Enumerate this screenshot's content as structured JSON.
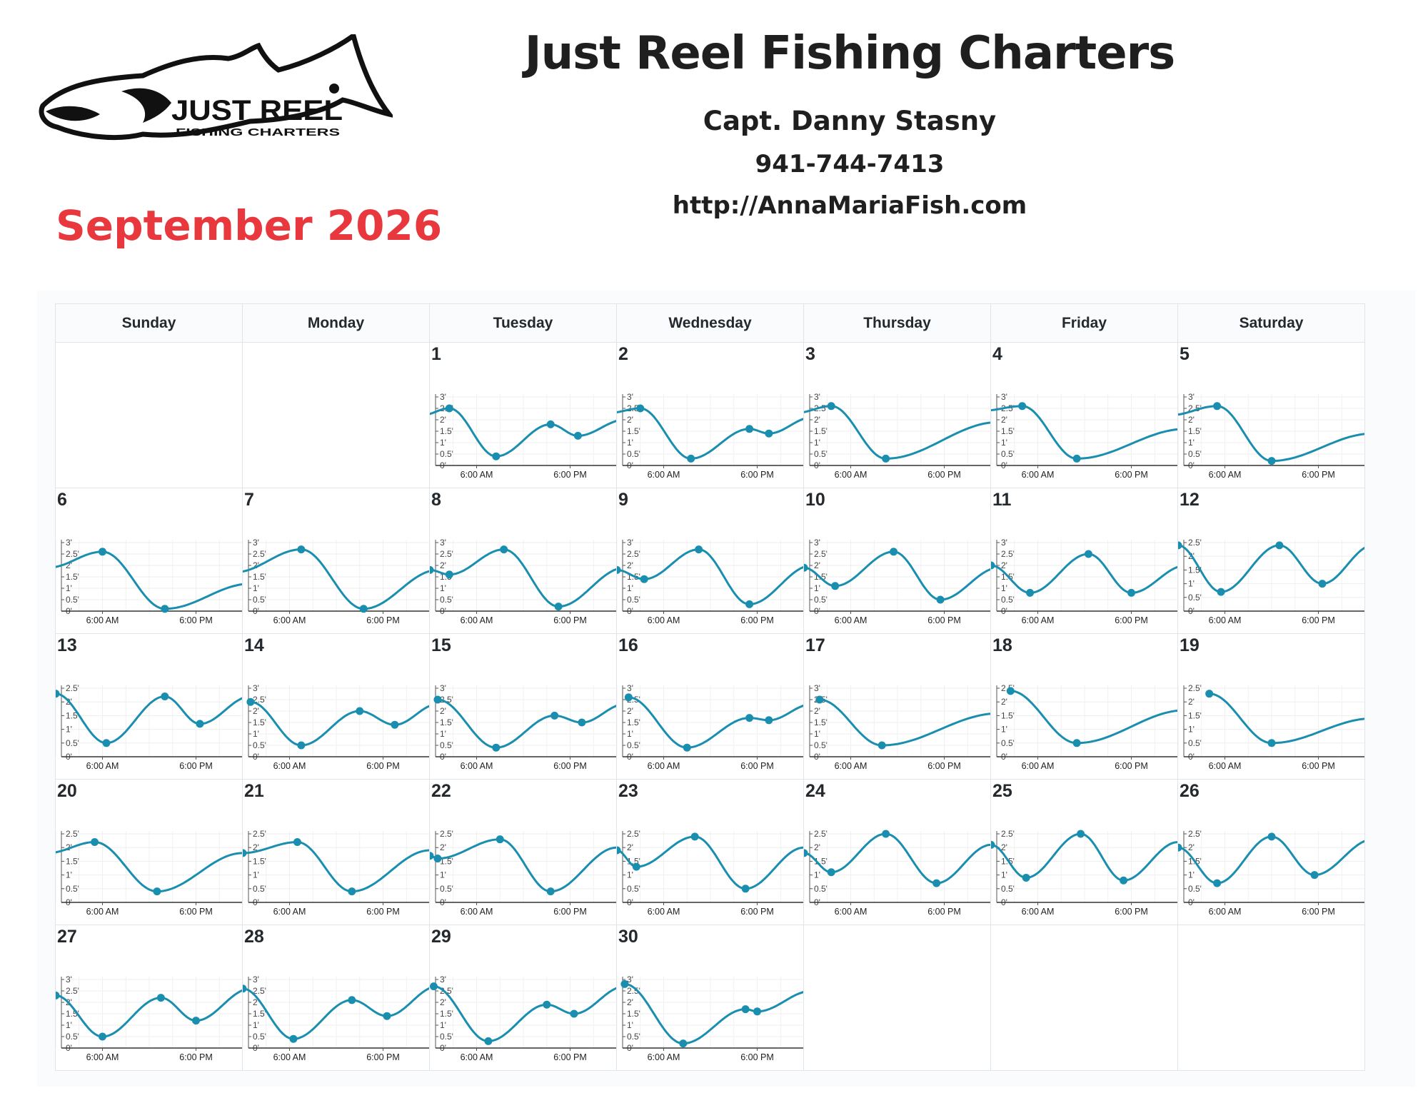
{
  "header": {
    "title": "Just Reel Fishing Charters",
    "captain": "Capt. Danny Stasny",
    "phone": "941-744-7413",
    "website": "http://AnnaMariaFish.com",
    "month": "September 2026"
  },
  "logo": {
    "line1": "JUST REEL",
    "line2": "FISHING CHARTERS",
    "description_icon": "redfish-logo-icon"
  },
  "colors": {
    "accent_red": "#e8383d",
    "tide_line": "#1a8eaf",
    "grid": "#e1e4e8"
  },
  "calendar": {
    "weekdays": [
      "Sunday",
      "Monday",
      "Tuesday",
      "Wednesday",
      "Thursday",
      "Friday",
      "Saturday"
    ],
    "first_weekday_index": 2,
    "days_in_month": 30
  },
  "chart_data": {
    "type": "line",
    "description_of_series": "daily tide height curves with high/low tide markers",
    "x_unit": "hour",
    "x_ticks": [
      {
        "hour": 6,
        "label": "6:00 AM"
      },
      {
        "hour": 18,
        "label": "6:00 PM"
      }
    ],
    "y_unit": "ft",
    "ylim": [
      0,
      3
    ],
    "y_ticks_standard": [
      "0'",
      "0.5'",
      "1'",
      "1.5'",
      "2'",
      "2.5'",
      "3'"
    ],
    "y_ticks_short": [
      "0'",
      "0.5'",
      "1'",
      "1.5'",
      "2'",
      "2.5'"
    ],
    "days": [
      {
        "day": 1,
        "y_top": 3,
        "points": [
          [
            -1,
            2.2
          ],
          [
            2.5,
            2.5
          ],
          [
            8.5,
            0.4
          ],
          [
            15.5,
            1.8
          ],
          [
            19,
            1.3
          ],
          [
            25,
            2.0
          ]
        ]
      },
      {
        "day": 2,
        "y_top": 3,
        "points": [
          [
            -1,
            2.3
          ],
          [
            3,
            2.5
          ],
          [
            9.5,
            0.3
          ],
          [
            17,
            1.6
          ],
          [
            19.5,
            1.4
          ],
          [
            25,
            2.1
          ]
        ]
      },
      {
        "day": 3,
        "y_top": 3,
        "points": [
          [
            -1,
            2.3
          ],
          [
            3.5,
            2.6
          ],
          [
            10.5,
            0.3
          ],
          [
            25,
            1.9
          ]
        ]
      },
      {
        "day": 4,
        "y_top": 3,
        "points": [
          [
            -1,
            2.4
          ],
          [
            4,
            2.6
          ],
          [
            11,
            0.3
          ],
          [
            25,
            1.6
          ]
        ]
      },
      {
        "day": 5,
        "y_top": 3,
        "points": [
          [
            -1,
            2.2
          ],
          [
            5,
            2.6
          ],
          [
            12,
            0.2
          ],
          [
            25,
            1.4
          ]
        ]
      },
      {
        "day": 6,
        "y_top": 3,
        "points": [
          [
            -1,
            1.9
          ],
          [
            6,
            2.6
          ],
          [
            14,
            0.1
          ],
          [
            25,
            1.2
          ]
        ]
      },
      {
        "day": 7,
        "y_top": 3,
        "points": [
          [
            -1,
            1.7
          ],
          [
            7.5,
            2.7
          ],
          [
            15.5,
            0.1
          ],
          [
            25,
            1.8
          ]
        ]
      },
      {
        "day": 8,
        "y_top": 3,
        "points": [
          [
            0,
            1.8
          ],
          [
            2.5,
            1.6
          ],
          [
            9.5,
            2.7
          ],
          [
            16.5,
            0.2
          ],
          [
            25,
            1.9
          ]
        ]
      },
      {
        "day": 9,
        "y_top": 3,
        "points": [
          [
            0,
            1.8
          ],
          [
            3.5,
            1.4
          ],
          [
            10.5,
            2.7
          ],
          [
            17,
            0.3
          ],
          [
            25,
            2.0
          ]
        ]
      },
      {
        "day": 10,
        "y_top": 3,
        "points": [
          [
            0,
            1.9
          ],
          [
            4,
            1.1
          ],
          [
            11.5,
            2.6
          ],
          [
            17.5,
            0.5
          ],
          [
            25,
            1.9
          ]
        ]
      },
      {
        "day": 11,
        "y_top": 3,
        "points": [
          [
            0,
            2.0
          ],
          [
            5,
            0.8
          ],
          [
            12.5,
            2.5
          ],
          [
            18,
            0.8
          ],
          [
            25,
            2.0
          ]
        ]
      },
      {
        "day": 12,
        "y_top": 2.5,
        "points": [
          [
            0,
            2.4
          ],
          [
            5.5,
            0.7
          ],
          [
            13,
            2.4
          ],
          [
            18.5,
            1.0
          ],
          [
            25,
            2.4
          ]
        ]
      },
      {
        "day": 13,
        "y_top": 2.5,
        "points": [
          [
            0,
            2.3
          ],
          [
            6.5,
            0.5
          ],
          [
            14,
            2.2
          ],
          [
            18.5,
            1.2
          ],
          [
            25,
            2.2
          ]
        ]
      },
      {
        "day": 14,
        "y_top": 3,
        "points": [
          [
            1,
            2.4
          ],
          [
            7.5,
            0.5
          ],
          [
            15,
            2.0
          ],
          [
            19.5,
            1.4
          ],
          [
            25,
            2.3
          ]
        ]
      },
      {
        "day": 15,
        "y_top": 3,
        "points": [
          [
            1,
            2.5
          ],
          [
            8.5,
            0.4
          ],
          [
            16,
            1.8
          ],
          [
            19.5,
            1.5
          ],
          [
            25,
            2.3
          ]
        ]
      },
      {
        "day": 16,
        "y_top": 3,
        "points": [
          [
            1.5,
            2.6
          ],
          [
            9,
            0.4
          ],
          [
            17,
            1.7
          ],
          [
            19.5,
            1.6
          ],
          [
            25,
            2.3
          ]
        ]
      },
      {
        "day": 17,
        "y_top": 3,
        "points": [
          [
            2,
            2.5
          ],
          [
            10,
            0.5
          ],
          [
            25,
            1.9
          ]
        ]
      },
      {
        "day": 18,
        "y_top": 2.5,
        "points": [
          [
            2.5,
            2.4
          ],
          [
            11,
            0.5
          ],
          [
            25,
            1.7
          ]
        ]
      },
      {
        "day": 19,
        "y_top": 2.5,
        "points": [
          [
            4,
            2.3
          ],
          [
            12,
            0.5
          ],
          [
            25,
            1.4
          ]
        ]
      },
      {
        "day": 20,
        "y_top": 2.5,
        "points": [
          [
            -1,
            1.8
          ],
          [
            5,
            2.2
          ],
          [
            13,
            0.4
          ],
          [
            24,
            1.8
          ]
        ]
      },
      {
        "day": 21,
        "y_top": 2.5,
        "points": [
          [
            0,
            1.8
          ],
          [
            7,
            2.2
          ],
          [
            14,
            0.4
          ],
          [
            24,
            1.9
          ]
        ]
      },
      {
        "day": 22,
        "y_top": 2.5,
        "points": [
          [
            0,
            1.7
          ],
          [
            1,
            1.6
          ],
          [
            9,
            2.3
          ],
          [
            15.5,
            0.4
          ],
          [
            24,
            2.0
          ]
        ]
      },
      {
        "day": 23,
        "y_top": 2.5,
        "points": [
          [
            0,
            1.9
          ],
          [
            2.5,
            1.3
          ],
          [
            10,
            2.4
          ],
          [
            16.5,
            0.5
          ],
          [
            24,
            2.0
          ]
        ]
      },
      {
        "day": 24,
        "y_top": 2.5,
        "points": [
          [
            0,
            1.8
          ],
          [
            3.5,
            1.1
          ],
          [
            10.5,
            2.5
          ],
          [
            17,
            0.7
          ],
          [
            24,
            2.1
          ]
        ]
      },
      {
        "day": 25,
        "y_top": 2.5,
        "points": [
          [
            0,
            2.1
          ],
          [
            4.5,
            0.9
          ],
          [
            11.5,
            2.5
          ],
          [
            17,
            0.8
          ],
          [
            24,
            2.2
          ]
        ]
      },
      {
        "day": 26,
        "y_top": 2.5,
        "points": [
          [
            0,
            2.0
          ],
          [
            5,
            0.7
          ],
          [
            12,
            2.4
          ],
          [
            17.5,
            1.0
          ],
          [
            25,
            2.3
          ]
        ]
      },
      {
        "day": 27,
        "y_top": 3,
        "points": [
          [
            0,
            2.3
          ],
          [
            6,
            0.5
          ],
          [
            13.5,
            2.2
          ],
          [
            18,
            1.2
          ],
          [
            25,
            2.6
          ]
        ]
      },
      {
        "day": 28,
        "y_top": 3,
        "points": [
          [
            0,
            2.6
          ],
          [
            6.5,
            0.4
          ],
          [
            14,
            2.1
          ],
          [
            18.5,
            1.4
          ],
          [
            25,
            2.7
          ]
        ]
      },
      {
        "day": 29,
        "y_top": 3,
        "points": [
          [
            0.5,
            2.7
          ],
          [
            7.5,
            0.3
          ],
          [
            15,
            1.9
          ],
          [
            18.5,
            1.5
          ],
          [
            25,
            2.7
          ]
        ]
      },
      {
        "day": 30,
        "y_top": 3,
        "points": [
          [
            1,
            2.8
          ],
          [
            8.5,
            0.2
          ],
          [
            16.5,
            1.7
          ],
          [
            18,
            1.6
          ],
          [
            25,
            2.5
          ]
        ]
      }
    ]
  }
}
